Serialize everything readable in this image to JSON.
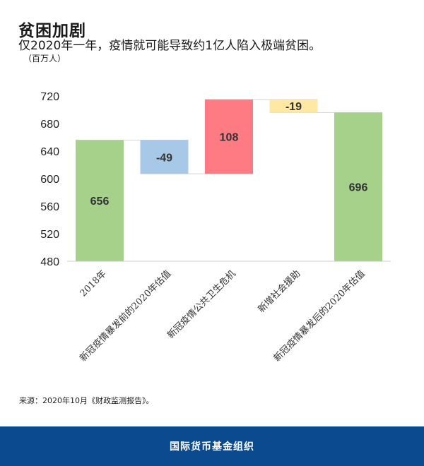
{
  "title": "贫困加剧",
  "subtitle": "仅2020年一年，疫情就可能导致约1亿人陷入极端贫困。",
  "unit_note": "（百万人）",
  "source": "来源：2020年10月《财政监测报告》。",
  "footer": "国际货币基金组织",
  "colors": {
    "total": "#a5d18a",
    "decrease": "#a8c8e8",
    "increase": "#ff7b84",
    "support": "#ffe8a3"
  },
  "chart_data": {
    "type": "bar",
    "subtype": "waterfall",
    "categories": [
      "2018年",
      "新冠疫情暴发前的2020年估值",
      "新冠疫情公共卫生危机",
      "新增社会援助",
      "新冠疫情暴发后的2020年估值"
    ],
    "values": [
      656,
      -49,
      108,
      -19,
      696
    ],
    "kinds": [
      "total",
      "decrease",
      "increase",
      "support",
      "total"
    ],
    "value_labels": [
      "656",
      "-49",
      "108",
      "-19",
      "696"
    ],
    "yticks": [
      480,
      520,
      560,
      600,
      640,
      680,
      720
    ],
    "ylim": [
      480,
      720
    ],
    "grid": false,
    "legend": "none"
  }
}
